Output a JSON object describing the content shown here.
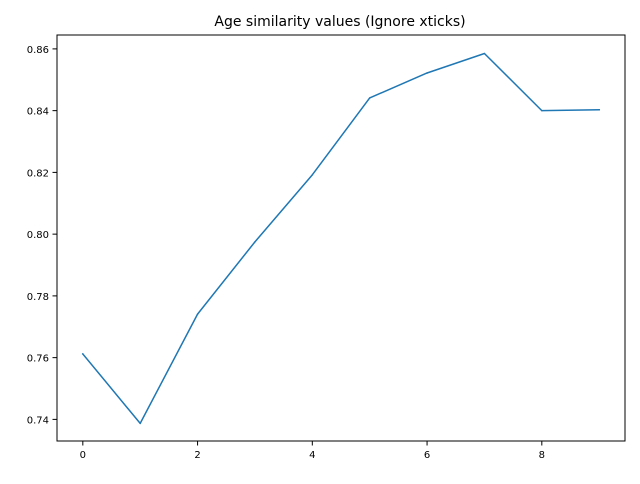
{
  "chart_data": {
    "type": "line",
    "title": "Age similarity values (Ignore xticks)",
    "xlabel": "",
    "ylabel": "",
    "x": [
      0,
      1,
      2,
      3,
      4,
      5,
      6,
      7,
      8,
      9
    ],
    "series": [
      {
        "values": [
          0.7612,
          0.7387,
          0.7741,
          0.7975,
          0.8192,
          0.8441,
          0.8522,
          0.8585,
          0.84,
          0.8403
        ],
        "color": "#1f77b4"
      }
    ],
    "xlim": [
      -0.45,
      9.45
    ],
    "ylim": [
      0.733,
      0.8645
    ],
    "xticks": [
      0,
      2,
      4,
      6,
      8
    ],
    "xtick_labels": [
      "0",
      "2",
      "4",
      "6",
      "8"
    ],
    "yticks": [
      0.74,
      0.76,
      0.78,
      0.8,
      0.82,
      0.84,
      0.86
    ],
    "ytick_labels": [
      "0.74",
      "0.76",
      "0.78",
      "0.80",
      "0.82",
      "0.84",
      "0.86"
    ],
    "grid": false,
    "legend": "none"
  }
}
